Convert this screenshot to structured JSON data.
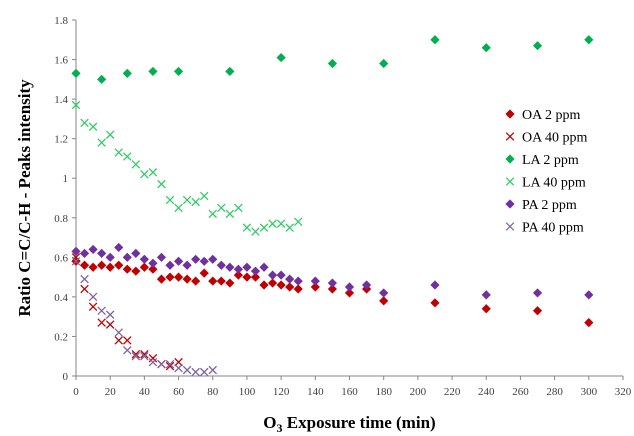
{
  "chart_data": {
    "type": "scatter",
    "title": "",
    "xlabel_prefix": "O",
    "xlabel_sub": "3",
    "xlabel_suffix": " Exposure time (min)",
    "ylabel": "Ratio C=C/C-H - Peaks intensity",
    "xlim": [
      0,
      320
    ],
    "ylim": [
      0,
      1.8
    ],
    "xticks": [
      0,
      20,
      40,
      60,
      80,
      100,
      120,
      140,
      160,
      180,
      200,
      220,
      240,
      260,
      280,
      300,
      320
    ],
    "yticks": [
      0,
      0.2,
      0.4,
      0.6,
      0.8,
      1,
      1.2,
      1.4,
      1.6,
      1.8
    ],
    "grid": false,
    "legend_position": "right",
    "series": [
      {
        "name": "OA 2 ppm",
        "marker": "diamond",
        "color": "#c00000",
        "x": [
          0,
          5,
          10,
          15,
          20,
          25,
          30,
          35,
          40,
          45,
          50,
          55,
          60,
          65,
          70,
          75,
          80,
          85,
          90,
          95,
          100,
          105,
          110,
          115,
          120,
          125,
          130,
          140,
          150,
          160,
          170,
          180,
          210,
          240,
          270,
          300
        ],
        "y": [
          0.58,
          0.56,
          0.55,
          0.56,
          0.55,
          0.56,
          0.54,
          0.53,
          0.55,
          0.54,
          0.49,
          0.5,
          0.5,
          0.49,
          0.48,
          0.52,
          0.48,
          0.48,
          0.47,
          0.51,
          0.5,
          0.5,
          0.46,
          0.47,
          0.46,
          0.45,
          0.44,
          0.45,
          0.44,
          0.42,
          0.44,
          0.38,
          0.37,
          0.34,
          0.33,
          0.27
        ]
      },
      {
        "name": "OA 40 ppm",
        "marker": "x",
        "color": "#c00000",
        "x": [
          0,
          5,
          10,
          15,
          20,
          25,
          30,
          35,
          40,
          45,
          50,
          55,
          60
        ],
        "y": [
          0.6,
          0.44,
          0.35,
          0.27,
          0.26,
          0.18,
          0.18,
          0.11,
          0.11,
          0.09,
          0.06,
          0.05,
          0.07
        ]
      },
      {
        "name": "LA 2 ppm",
        "marker": "diamond",
        "color": "#00b050",
        "x": [
          0,
          15,
          30,
          45,
          60,
          90,
          120,
          150,
          180,
          210,
          240,
          270,
          300
        ],
        "y": [
          1.53,
          1.5,
          1.53,
          1.54,
          1.54,
          1.54,
          1.61,
          1.58,
          1.58,
          1.7,
          1.66,
          1.67,
          1.7
        ]
      },
      {
        "name": "LA 40 ppm",
        "marker": "x",
        "color": "#33cc66",
        "x": [
          0,
          5,
          10,
          15,
          20,
          25,
          30,
          35,
          40,
          45,
          50,
          55,
          60,
          65,
          70,
          75,
          80,
          85,
          90,
          95,
          100,
          105,
          110,
          115,
          120,
          125,
          130
        ],
        "y": [
          1.37,
          1.28,
          1.26,
          1.18,
          1.22,
          1.13,
          1.11,
          1.07,
          1.02,
          1.03,
          0.97,
          0.89,
          0.85,
          0.89,
          0.88,
          0.91,
          0.82,
          0.85,
          0.82,
          0.85,
          0.75,
          0.73,
          0.75,
          0.77,
          0.77,
          0.75,
          0.78
        ]
      },
      {
        "name": "PA 2 ppm",
        "marker": "diamond",
        "color": "#7030a0",
        "x": [
          0,
          5,
          10,
          15,
          20,
          25,
          30,
          35,
          40,
          45,
          50,
          55,
          60,
          65,
          70,
          75,
          80,
          85,
          90,
          95,
          100,
          105,
          110,
          115,
          120,
          125,
          130,
          140,
          150,
          160,
          170,
          180,
          210,
          240,
          270,
          300
        ],
        "y": [
          0.63,
          0.62,
          0.64,
          0.62,
          0.6,
          0.65,
          0.6,
          0.62,
          0.59,
          0.57,
          0.6,
          0.56,
          0.58,
          0.56,
          0.59,
          0.58,
          0.59,
          0.56,
          0.55,
          0.54,
          0.55,
          0.53,
          0.55,
          0.51,
          0.51,
          0.49,
          0.48,
          0.48,
          0.47,
          0.45,
          0.46,
          0.42,
          0.46,
          0.41,
          0.42,
          0.41
        ]
      },
      {
        "name": "PA 40 ppm",
        "marker": "x",
        "color": "#8064a2",
        "x": [
          0,
          5,
          10,
          15,
          20,
          25,
          30,
          35,
          40,
          45,
          50,
          55,
          60,
          65,
          70,
          75,
          80
        ],
        "y": [
          0.58,
          0.49,
          0.4,
          0.33,
          0.31,
          0.22,
          0.13,
          0.1,
          0.1,
          0.07,
          0.06,
          0.06,
          0.04,
          0.03,
          0.02,
          0.02,
          0.03
        ]
      }
    ]
  }
}
